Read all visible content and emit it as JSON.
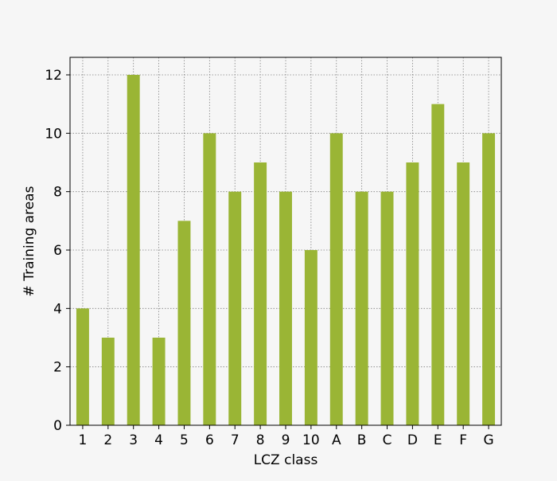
{
  "chart_data": {
    "type": "bar",
    "categories": [
      "1",
      "2",
      "3",
      "4",
      "5",
      "6",
      "7",
      "8",
      "9",
      "10",
      "A",
      "B",
      "C",
      "D",
      "E",
      "F",
      "G"
    ],
    "series": [
      {
        "values": [
          4,
          3,
          12,
          3,
          7,
          10,
          8,
          9,
          8,
          6,
          10,
          8,
          8,
          9,
          11,
          9,
          10
        ]
      }
    ],
    "title": "",
    "xlabel": "LCZ class",
    "ylabel": "# Training areas",
    "ylim": [
      0,
      12.6
    ],
    "yticks": [
      0,
      2,
      4,
      6,
      8,
      10,
      12
    ],
    "grid": true,
    "legend": "none",
    "bar_color": "#9ab535",
    "grid_color": "#808080"
  }
}
